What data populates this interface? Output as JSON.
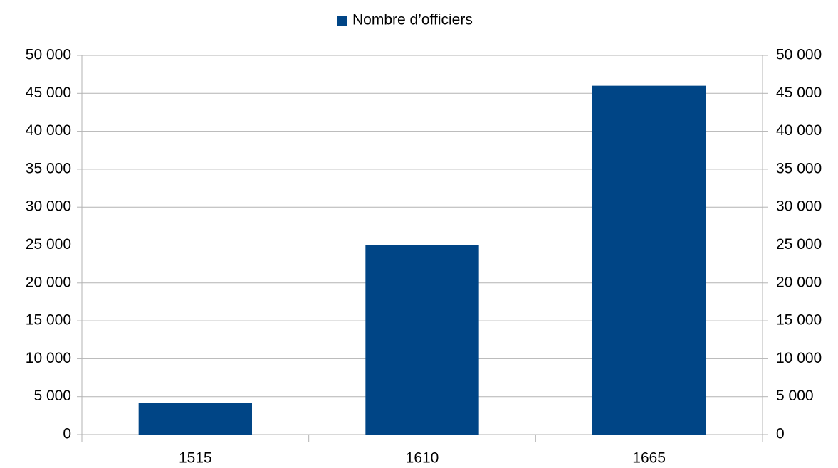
{
  "chart_data": {
    "type": "bar",
    "categories": [
      "1515",
      "1610",
      "1665"
    ],
    "series": [
      {
        "name": "Nombre d’officiers",
        "color": "#004586",
        "values": [
          4200,
          25000,
          46000
        ]
      }
    ],
    "ylim": [
      0,
      50000
    ],
    "yticks": [
      0,
      {
        "value": 5000,
        "label": "5 000"
      },
      {
        "value": 10000,
        "label": "10 000"
      },
      {
        "value": 15000,
        "label": "15 000"
      },
      {
        "value": 20000,
        "label": "20 000"
      },
      {
        "value": 25000,
        "label": "25 000"
      },
      {
        "value": 30000,
        "label": "30 000"
      },
      {
        "value": 35000,
        "label": "35 000"
      },
      {
        "value": 40000,
        "label": "40 000"
      },
      {
        "value": 45000,
        "label": "45 000"
      },
      {
        "value": 50000,
        "label": "50 000"
      }
    ],
    "y2lim": [
      0,
      50000
    ],
    "y2ticks": [
      0,
      {
        "value": 5000,
        "label": "5 000"
      },
      {
        "value": 10000,
        "label": "10 000"
      },
      {
        "value": 15000,
        "label": "15 000"
      },
      {
        "value": 20000,
        "label": "20 000"
      },
      {
        "value": 25000,
        "label": "25 000"
      },
      {
        "value": 30000,
        "label": "30 000"
      },
      {
        "value": 35000,
        "label": "35 000"
      },
      {
        "value": 40000,
        "label": "40 000"
      },
      {
        "value": 45000,
        "label": "45 000"
      },
      {
        "value": 50000,
        "label": "50 000"
      }
    ],
    "grid": true,
    "legend": "top"
  }
}
